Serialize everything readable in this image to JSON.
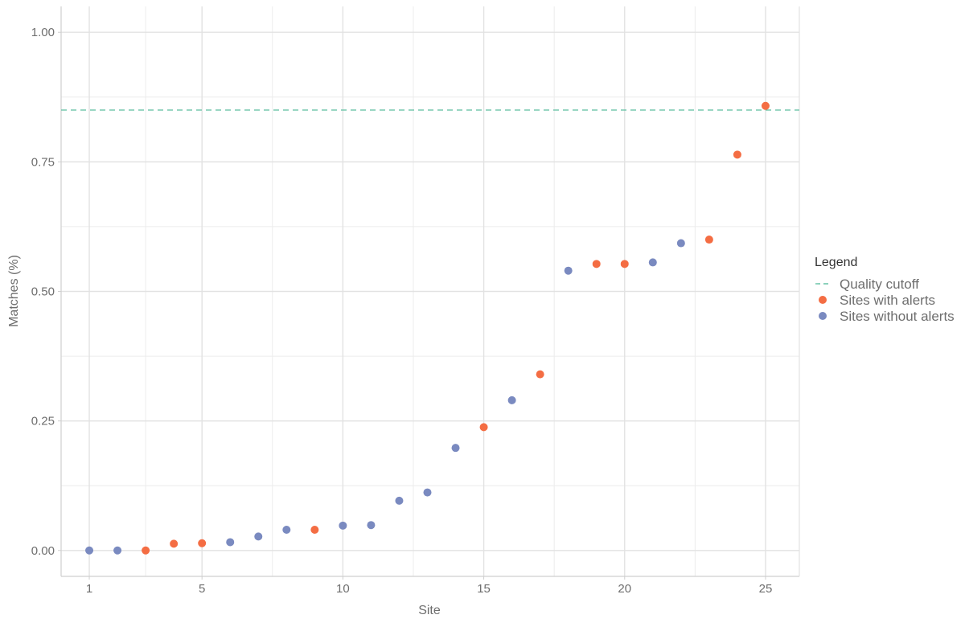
{
  "chart_data": {
    "type": "scatter",
    "xlabel": "Site",
    "ylabel": "Matches (%)",
    "xlim": [
      0.0,
      26.2
    ],
    "ylim": [
      -0.05,
      1.05
    ],
    "x_ticks": [
      1,
      5,
      10,
      15,
      20,
      25
    ],
    "y_ticks": [
      0.0,
      0.25,
      0.5,
      0.75,
      1.0
    ],
    "y_tick_labels": [
      "0.00",
      "0.25",
      "0.50",
      "0.75",
      "1.00"
    ],
    "grid": true,
    "legend_position": "right",
    "legend": {
      "title": "Legend",
      "entries": [
        {
          "label": "Quality cutoff",
          "kind": "dashed-line",
          "color": "#66c2a5"
        },
        {
          "label": "Sites with alerts",
          "kind": "point",
          "color": "#f46d43"
        },
        {
          "label": "Sites without alerts",
          "kind": "point",
          "color": "#7a8ac0"
        }
      ]
    },
    "reference_lines": [
      {
        "name": "Quality cutoff",
        "y": 0.85,
        "color": "#66c2a5",
        "style": "dashed"
      }
    ],
    "series": [
      {
        "name": "Sites with alerts",
        "color": "#f46d43",
        "x": [
          3,
          4,
          5,
          9,
          15,
          17,
          19,
          20,
          23,
          24,
          25
        ],
        "y": [
          0.0,
          0.013,
          0.014,
          0.04,
          0.238,
          0.34,
          0.553,
          0.553,
          0.6,
          0.764,
          0.858
        ]
      },
      {
        "name": "Sites without alerts",
        "color": "#7a8ac0",
        "x": [
          1,
          2,
          6,
          7,
          8,
          10,
          11,
          12,
          13,
          14,
          16,
          18,
          21,
          22
        ],
        "y": [
          0.0,
          0.0,
          0.016,
          0.027,
          0.04,
          0.048,
          0.049,
          0.096,
          0.112,
          0.198,
          0.29,
          0.54,
          0.556,
          0.593
        ]
      }
    ]
  }
}
